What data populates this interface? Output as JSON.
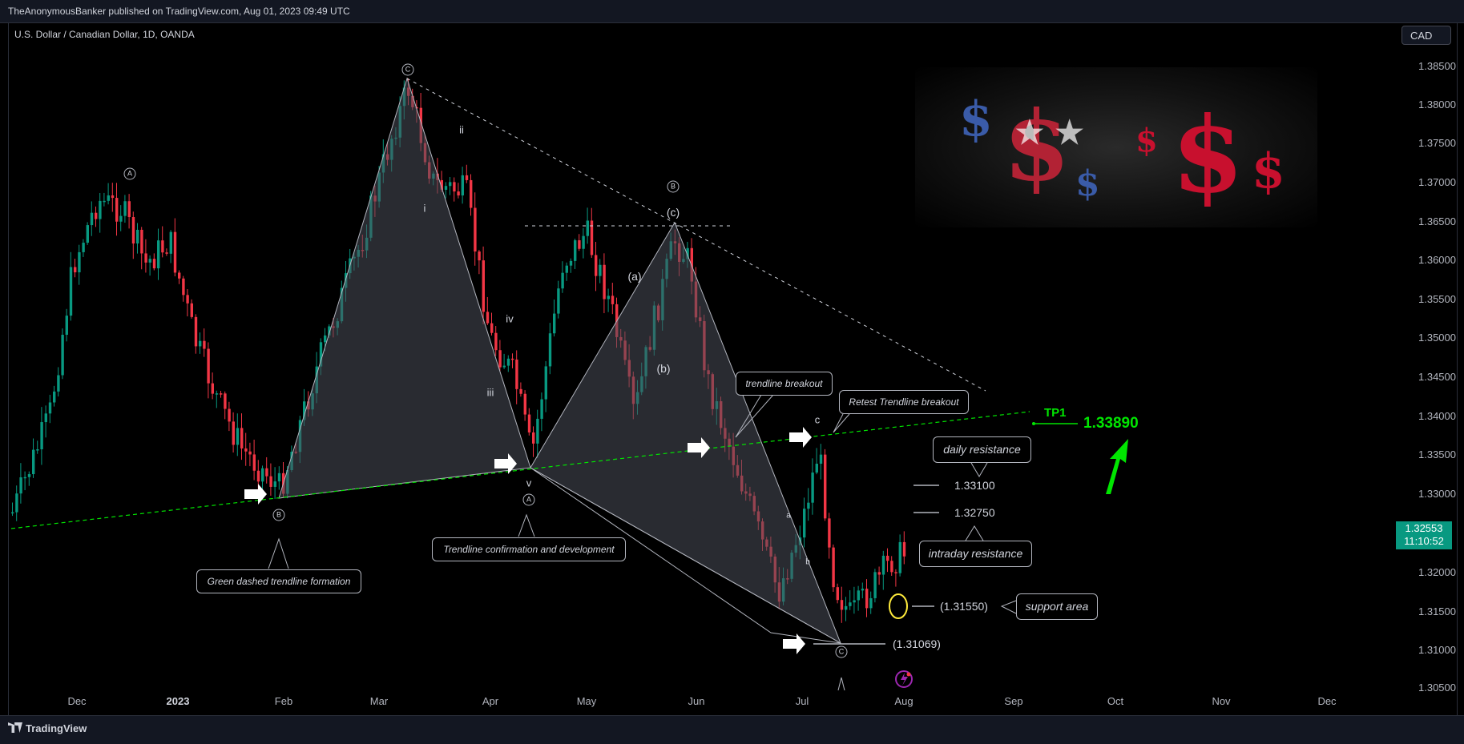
{
  "publisher_line": "TheAnonymousBanker published on TradingView.com, Aug 01, 2023 09:49 UTC",
  "symbol": "U.S. Dollar / Canadian Dollar, 1D, OANDA",
  "currency_button": "CAD",
  "current_price": "1.32553",
  "countdown": "11:10:52",
  "brand": "TradingView",
  "price_axis": [
    "1.38500",
    "1.38000",
    "1.37500",
    "1.37000",
    "1.36500",
    "1.36000",
    "1.35500",
    "1.35000",
    "1.34500",
    "1.34000",
    "1.33500",
    "1.33000",
    "1.32000",
    "1.31500",
    "1.31000",
    "1.30500"
  ],
  "time_axis": [
    {
      "label": "Dec",
      "bold": false
    },
    {
      "label": "2023",
      "bold": true
    },
    {
      "label": "Feb",
      "bold": false
    },
    {
      "label": "Mar",
      "bold": false
    },
    {
      "label": "Apr",
      "bold": false
    },
    {
      "label": "May",
      "bold": false
    },
    {
      "label": "Jun",
      "bold": false
    },
    {
      "label": "Jul",
      "bold": false
    },
    {
      "label": "Aug",
      "bold": false
    },
    {
      "label": "Sep",
      "bold": false
    },
    {
      "label": "Oct",
      "bold": false
    },
    {
      "label": "Nov",
      "bold": false
    },
    {
      "label": "Dec",
      "bold": false
    }
  ],
  "annotations": {
    "green_trendline": "Green dashed trendline formation",
    "trendline_confirmation": "Trendline confirmation and development",
    "trendline_breakout": "trendline breakout",
    "retest": "Retest Trendline breakout",
    "daily_resistance": "daily resistance",
    "intraday_resistance": "intraday resistance",
    "support_area": "support area"
  },
  "levels": {
    "l1": "1.33100",
    "l2": "1.32750",
    "support": "(1.31550)",
    "low": "(1.31069)"
  },
  "target": {
    "label": "TP1",
    "value": "1.33890"
  },
  "wave_labels": {
    "c_top": "C",
    "a_left": "A",
    "b_left": "B",
    "ii": "ii",
    "i": "i",
    "iii": "iii",
    "iv": "iv",
    "v": "v",
    "a_mid": "A",
    "b_mid": "B",
    "c_paren": "(c)",
    "a_paren": "(a)",
    "b_paren": "(b)",
    "c_small": "c",
    "c_low": "C",
    "a_small": "a",
    "b_small": "b"
  },
  "colors": {
    "background": "#000000",
    "up_candle": "#089981",
    "down_candle": "#f23645",
    "trendline": "#00e600",
    "pattern_fill": "#4a4f5a",
    "accent_badge": "#089981"
  }
}
